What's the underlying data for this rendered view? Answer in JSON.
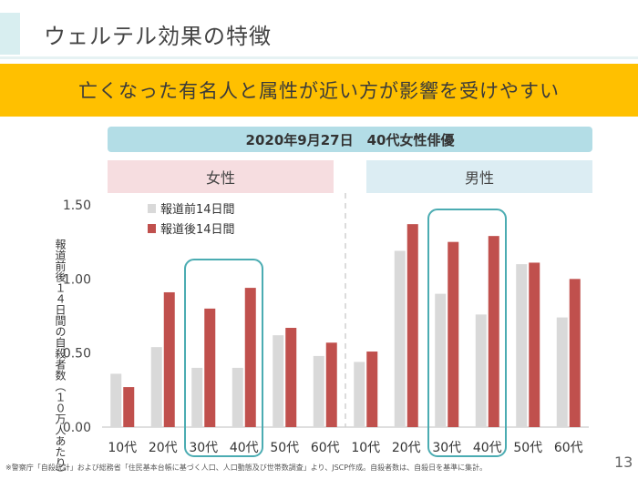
{
  "title": "ウェルテル効果の特徴",
  "banner": "亡くなった有名人と属性が近い方が影響を受けやすい",
  "subtitle": "2020年9月27日　40代女性俳優",
  "groups": {
    "female": "女性",
    "male": "男性"
  },
  "ylabel": "報道前後１４日間の自殺者数（１０万人あたり）",
  "footnote": "※警察庁「自殺統計」および総務省「住民基本台帳に基づく人口、人口動態及び世帯数調査」より、JSCP作成。自殺者数は、自殺日を基準に集計。",
  "page_number": "13",
  "colors": {
    "before": "#d9d9d9",
    "after": "#c0504d",
    "highlight": "#4bacb2",
    "banner": "#ffc000",
    "divider": "#d0d0d0"
  },
  "chart_data": {
    "type": "bar",
    "categories": [
      "10代",
      "20代",
      "30代",
      "40代",
      "50代",
      "60代",
      "10代",
      "20代",
      "30代",
      "40代",
      "50代",
      "60代"
    ],
    "series": [
      {
        "name": "報道前14日間",
        "values": [
          0.36,
          0.54,
          0.4,
          0.4,
          0.62,
          0.48,
          0.44,
          1.19,
          0.9,
          0.76,
          1.1,
          0.74
        ]
      },
      {
        "name": "報道後14日間",
        "values": [
          0.27,
          0.91,
          0.8,
          0.94,
          0.67,
          0.57,
          0.51,
          1.37,
          1.25,
          1.29,
          1.11,
          1.0
        ]
      }
    ],
    "yticks": [
      "0.00",
      "0.50",
      "1.00",
      "1.50"
    ],
    "ylim": [
      0,
      1.5
    ],
    "grid": false,
    "legend_position": "top-left",
    "highlighted_categories": [
      [
        2,
        3
      ],
      [
        8,
        9
      ]
    ]
  }
}
